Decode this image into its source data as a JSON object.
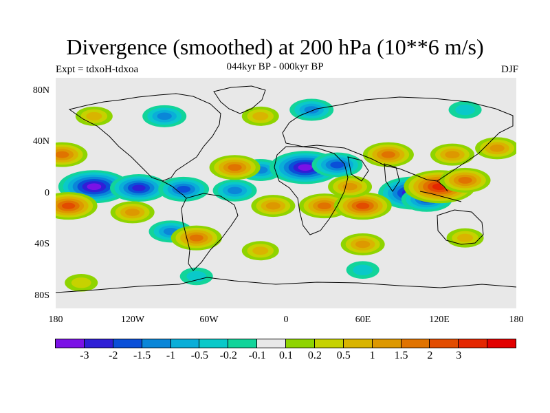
{
  "header": {
    "title": "Divergence (smoothed) at 200 hPa (10**6 m/s)",
    "subtitle": "044kyr BP - 000kyr BP",
    "left": "Expt = tdxoH-tdxoa",
    "right": "DJF"
  },
  "axes": {
    "lat_ticks": [
      "80N",
      "40N",
      "0",
      "40S",
      "80S"
    ],
    "lon_ticks": [
      "180",
      "120W",
      "60W",
      "0",
      "60E",
      "120E",
      "180"
    ]
  },
  "colorbar": {
    "colors": [
      "#7b12e6",
      "#2f1fd6",
      "#0a4fd8",
      "#0a86d8",
      "#0aaed8",
      "#0ac9c9",
      "#12d49a",
      "#e8e8e8",
      "#8fd400",
      "#c6d200",
      "#d9b400",
      "#dd9800",
      "#e07300",
      "#e24c00",
      "#e42600",
      "#e20000"
    ],
    "labels": [
      "-3",
      "-2",
      "-1.5",
      "-1",
      "-0.5",
      "-0.2",
      "-0.1",
      "0.1",
      "0.2",
      "0.5",
      "1",
      "1.5",
      "2",
      "3"
    ]
  },
  "map": {
    "background": "#e8e8e8",
    "blobs": [
      {
        "lon": -150,
        "lat": 5,
        "value": -3
      },
      {
        "lon": -115,
        "lat": 4,
        "value": -2
      },
      {
        "lon": -80,
        "lat": 3,
        "value": -1.5
      },
      {
        "lon": -40,
        "lat": 2,
        "value": -1
      },
      {
        "lon": -20,
        "lat": 18,
        "value": -1
      },
      {
        "lon": 15,
        "lat": 20,
        "value": -3
      },
      {
        "lon": 40,
        "lat": 22,
        "value": -1.5
      },
      {
        "lon": 100,
        "lat": 0,
        "value": -3
      },
      {
        "lon": 110,
        "lat": -5,
        "value": -1.5
      },
      {
        "lon": -170,
        "lat": -10,
        "value": 2
      },
      {
        "lon": -120,
        "lat": -15,
        "value": 1
      },
      {
        "lon": -90,
        "lat": -30,
        "value": -1
      },
      {
        "lon": -70,
        "lat": -35,
        "value": 1.5
      },
      {
        "lon": -40,
        "lat": 20,
        "value": 1.5
      },
      {
        "lon": -10,
        "lat": -10,
        "value": 1
      },
      {
        "lon": 30,
        "lat": -10,
        "value": 1.5
      },
      {
        "lon": 60,
        "lat": -10,
        "value": 2
      },
      {
        "lon": 50,
        "lat": 5,
        "value": 1
      },
      {
        "lon": 120,
        "lat": 5,
        "value": 3
      },
      {
        "lon": 140,
        "lat": 10,
        "value": 1.5
      },
      {
        "lon": 130,
        "lat": 30,
        "value": 1
      },
      {
        "lon": 165,
        "lat": 35,
        "value": 1
      },
      {
        "lon": 80,
        "lat": 30,
        "value": 1.5
      },
      {
        "lon": -175,
        "lat": 30,
        "value": 1.5
      },
      {
        "lon": 140,
        "lat": -35,
        "value": 0.5
      },
      {
        "lon": 60,
        "lat": -40,
        "value": 1
      },
      {
        "lon": -20,
        "lat": -45,
        "value": 0.5
      },
      {
        "lon": -95,
        "lat": 60,
        "value": -1
      },
      {
        "lon": -20,
        "lat": 60,
        "value": 0.5
      },
      {
        "lon": 20,
        "lat": 65,
        "value": -1
      },
      {
        "lon": -150,
        "lat": 60,
        "value": 0.5
      },
      {
        "lon": -70,
        "lat": -65,
        "value": -0.2
      },
      {
        "lon": 60,
        "lat": -60,
        "value": -0.2
      },
      {
        "lon": -160,
        "lat": -70,
        "value": 0.2
      },
      {
        "lon": 140,
        "lat": 65,
        "value": -0.2
      }
    ]
  }
}
